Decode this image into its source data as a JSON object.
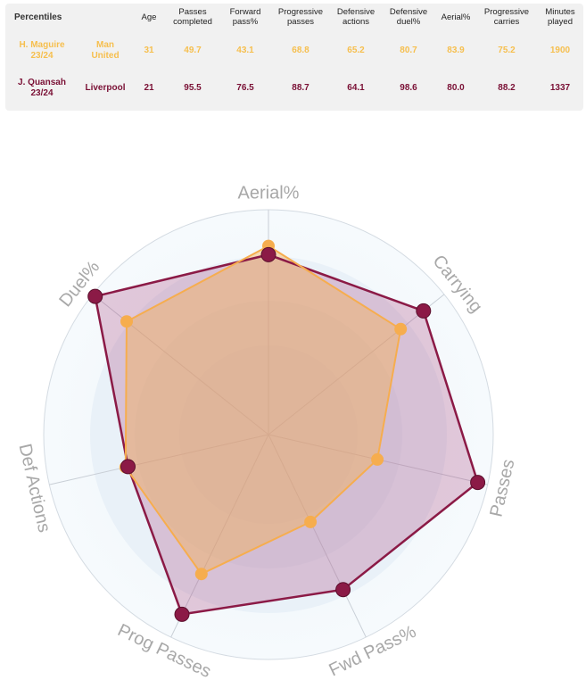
{
  "table": {
    "headers": [
      "Percentiles",
      "Age",
      "Passes completed",
      "Forward pass%",
      "Progressive passes",
      "Defensive actions",
      "Defensive duel%",
      "Aerial%",
      "Progressive carries",
      "Minutes played"
    ],
    "rows": [
      {
        "player_line1": "H. Maguire",
        "player_line2": "23/24",
        "team_line1": "Man",
        "team_line2": "United",
        "age": "31",
        "passes_completed": "49.7",
        "forward_pass_pct": "43.1",
        "progressive_passes": "68.8",
        "defensive_actions": "65.2",
        "defensive_duel_pct": "80.7",
        "aerial_pct": "83.9",
        "progressive_carries": "75.2",
        "minutes_played": "1900"
      },
      {
        "player_line1": "J. Quansah",
        "player_line2": "23/24",
        "team_line1": "Liverpool",
        "team_line2": "",
        "age": "21",
        "passes_completed": "95.5",
        "forward_pass_pct": "76.5",
        "progressive_passes": "88.7",
        "defensive_actions": "64.1",
        "defensive_duel_pct": "98.6",
        "aerial_pct": "80.0",
        "progressive_carries": "88.2",
        "minutes_played": "1337"
      }
    ]
  },
  "colors": {
    "maguire": "#f6ad4e",
    "quansah": "#8b1a46",
    "maguire_text": "#f6bf4e",
    "quansah_text": "#7a1035",
    "label": "#a8a8a8"
  },
  "chart_data": {
    "type": "radar",
    "axes": [
      "Aerial%",
      "Carrying",
      "Passes",
      "Fwd Pass%",
      "Prog Passes",
      "Def Actions",
      "Duel%"
    ],
    "range": [
      0,
      100
    ],
    "series": [
      {
        "name": "H. Maguire",
        "values": [
          83.9,
          75.2,
          49.7,
          43.1,
          68.8,
          65.2,
          80.7
        ]
      },
      {
        "name": "J. Quansah",
        "values": [
          80.0,
          88.2,
          95.5,
          76.5,
          88.7,
          64.1,
          98.6
        ]
      }
    ]
  }
}
